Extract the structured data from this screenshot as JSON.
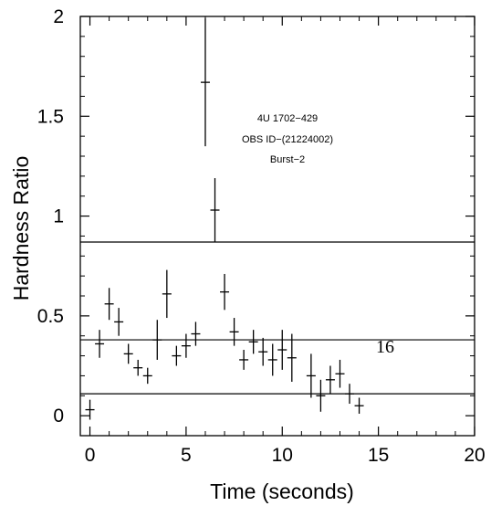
{
  "chart_data": {
    "type": "scatter",
    "xlabel": "Time (seconds)",
    "ylabel": "Hardness Ratio",
    "xlim": [
      -0.5,
      20
    ],
    "ylim": [
      -0.1,
      2
    ],
    "x_ticks": [
      0,
      5,
      10,
      15,
      20
    ],
    "y_ticks": [
      0,
      0.5,
      1,
      1.5,
      2
    ],
    "x_tick_labels": [
      "0",
      "5",
      "10",
      "15",
      "20"
    ],
    "y_tick_labels": [
      "0",
      "0.5",
      "1",
      "1.5",
      "2"
    ],
    "annotations": [
      "4U 1702−429",
      "OBS ID−(21224002)",
      "Burst−2"
    ],
    "side_label": "16",
    "horizontal_lines": [
      0.87,
      0.38,
      0.11
    ],
    "points": [
      {
        "x": 0.0,
        "y": 0.03,
        "err": 0.05
      },
      {
        "x": 0.5,
        "y": 0.36,
        "err": 0.07
      },
      {
        "x": 1.0,
        "y": 0.56,
        "err": 0.08
      },
      {
        "x": 1.5,
        "y": 0.47,
        "err": 0.07
      },
      {
        "x": 2.0,
        "y": 0.31,
        "err": 0.05
      },
      {
        "x": 2.5,
        "y": 0.24,
        "err": 0.04
      },
      {
        "x": 3.0,
        "y": 0.2,
        "err": 0.04
      },
      {
        "x": 3.5,
        "y": 0.38,
        "err": 0.1
      },
      {
        "x": 4.0,
        "y": 0.61,
        "err": 0.12
      },
      {
        "x": 4.5,
        "y": 0.3,
        "err": 0.05
      },
      {
        "x": 5.0,
        "y": 0.35,
        "err": 0.06
      },
      {
        "x": 5.5,
        "y": 0.41,
        "err": 0.06
      },
      {
        "x": 6.0,
        "y": 1.67,
        "err": 0.32
      },
      {
        "x": 6.5,
        "y": 1.03,
        "err": 0.16
      },
      {
        "x": 7.0,
        "y": 0.62,
        "err": 0.09
      },
      {
        "x": 7.5,
        "y": 0.42,
        "err": 0.07
      },
      {
        "x": 8.0,
        "y": 0.28,
        "err": 0.05
      },
      {
        "x": 8.5,
        "y": 0.37,
        "err": 0.06
      },
      {
        "x": 9.0,
        "y": 0.32,
        "err": 0.07
      },
      {
        "x": 9.5,
        "y": 0.28,
        "err": 0.08
      },
      {
        "x": 10.0,
        "y": 0.33,
        "err": 0.1
      },
      {
        "x": 10.5,
        "y": 0.29,
        "err": 0.12
      },
      {
        "x": 11.5,
        "y": 0.2,
        "err": 0.11
      },
      {
        "x": 12.0,
        "y": 0.1,
        "err": 0.08
      },
      {
        "x": 12.5,
        "y": 0.18,
        "err": 0.07
      },
      {
        "x": 13.0,
        "y": 0.21,
        "err": 0.07
      },
      {
        "x": 13.5,
        "y": 0.11,
        "err": 0.05
      },
      {
        "x": 14.0,
        "y": 0.05,
        "err": 0.04
      }
    ]
  }
}
